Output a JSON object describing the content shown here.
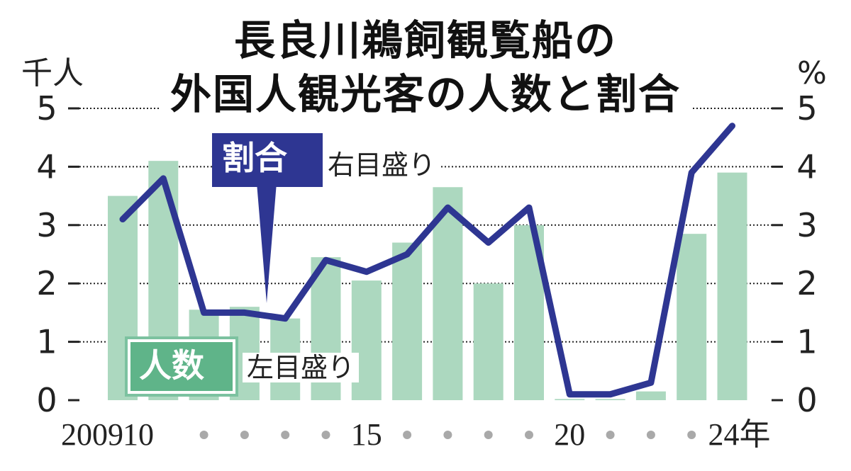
{
  "title": {
    "line1": "長良川鵜飼観覧船の",
    "line2": "外国人観光客の人数と割合"
  },
  "units": {
    "left": "千人",
    "right": "%"
  },
  "labels": {
    "ratio_tag": "割合",
    "ratio_note": "右目盛り",
    "count_tag": "人数",
    "count_note": "左目盛り"
  },
  "colors": {
    "bar": "#acd8bf",
    "line": "#2e3692",
    "grid": "#222222",
    "count_tag": "#5fb489"
  },
  "chart_data": {
    "type": "bar",
    "categories": [
      "2009",
      "2010",
      "2011",
      "2012",
      "2013",
      "2014",
      "2015",
      "2016",
      "2017",
      "2018",
      "2019",
      "2020",
      "2021",
      "2022",
      "2023",
      "2024"
    ],
    "x_tick_labels": [
      "2009",
      "10",
      "",
      "",
      "",
      "",
      "15",
      "",
      "",
      "",
      "",
      "20",
      "",
      "",
      "",
      "24年"
    ],
    "series": [
      {
        "name": "人数",
        "type": "bar",
        "axis": "left",
        "values": [
          3.5,
          4.1,
          1.55,
          1.6,
          1.4,
          2.45,
          2.05,
          2.7,
          3.65,
          2.0,
          3.0,
          0.02,
          0.02,
          0.15,
          2.85,
          3.9
        ]
      },
      {
        "name": "割合",
        "type": "line",
        "axis": "right",
        "values": [
          3.1,
          3.8,
          1.5,
          1.5,
          1.4,
          2.4,
          2.2,
          2.5,
          3.3,
          2.7,
          3.3,
          0.1,
          0.1,
          0.3,
          3.9,
          4.7
        ]
      }
    ],
    "y_left": {
      "label": "千人",
      "ticks": [
        "0",
        "1",
        "2",
        "3",
        "4",
        "5"
      ],
      "ylim": [
        0,
        5
      ]
    },
    "y_right": {
      "label": "%",
      "ticks": [
        "0",
        "1",
        "2",
        "3",
        "4",
        "5"
      ],
      "ylim": [
        0,
        5
      ]
    },
    "grid": true
  }
}
